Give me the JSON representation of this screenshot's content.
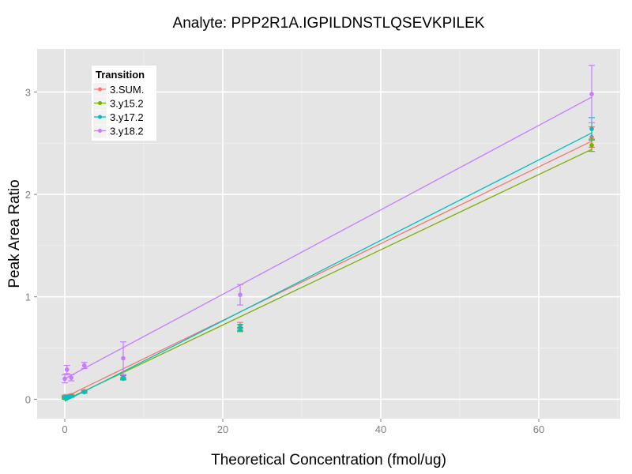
{
  "chart_data": {
    "type": "line",
    "title": "Analyte: PPP2R1A.IGPILDNSTLQSEVKPILEK",
    "xlabel": "Theoretical Concentration (fmol/ug)",
    "ylabel": "Peak Area Ratio",
    "xlim": [
      -3.5,
      70.3
    ],
    "ylim": [
      -0.19,
      3.42
    ],
    "xticks": [
      0,
      20,
      40,
      60
    ],
    "xtick_labels": [
      "0",
      "20",
      "40",
      "60"
    ],
    "yticks": [
      0,
      1,
      2,
      3
    ],
    "ytick_labels": [
      "0",
      "1",
      "2",
      "3"
    ],
    "grid": true,
    "legend": {
      "title": "Transition",
      "placement": "top-left"
    },
    "x": [
      0,
      0.27,
      0.82,
      2.47,
      7.4,
      22.2,
      66.7
    ],
    "series": [
      {
        "name": "3.SUM.",
        "color": "#F8766D",
        "values": [
          0.03,
          0.03,
          0.04,
          0.08,
          0.22,
          0.72,
          2.56
        ],
        "err": [
          0.01,
          0.01,
          0.01,
          0.01,
          0.02,
          0.03,
          0.1
        ],
        "fit": [
          0.02,
          2.52
        ]
      },
      {
        "name": "3.y15.2",
        "color": "#7CAE00",
        "values": [
          0.01,
          0.02,
          0.03,
          0.07,
          0.2,
          0.68,
          2.48
        ],
        "err": [
          0.01,
          0.01,
          0.01,
          0.01,
          0.01,
          0.02,
          0.06
        ],
        "fit": [
          -0.01,
          2.44
        ]
      },
      {
        "name": "3.y17.2",
        "color": "#00BFC4",
        "values": [
          0.02,
          0.02,
          0.03,
          0.07,
          0.21,
          0.7,
          2.64
        ],
        "err": [
          0.01,
          0.01,
          0.01,
          0.01,
          0.02,
          0.03,
          0.11
        ],
        "fit": [
          -0.02,
          2.6
        ]
      },
      {
        "name": "3.y18.2",
        "color": "#C77CFF",
        "values": [
          0.2,
          0.29,
          0.21,
          0.33,
          0.4,
          1.02,
          2.98
        ],
        "err": [
          0.04,
          0.04,
          0.03,
          0.03,
          0.16,
          0.1,
          0.28
        ],
        "fit": [
          0.2,
          2.95
        ]
      }
    ]
  }
}
